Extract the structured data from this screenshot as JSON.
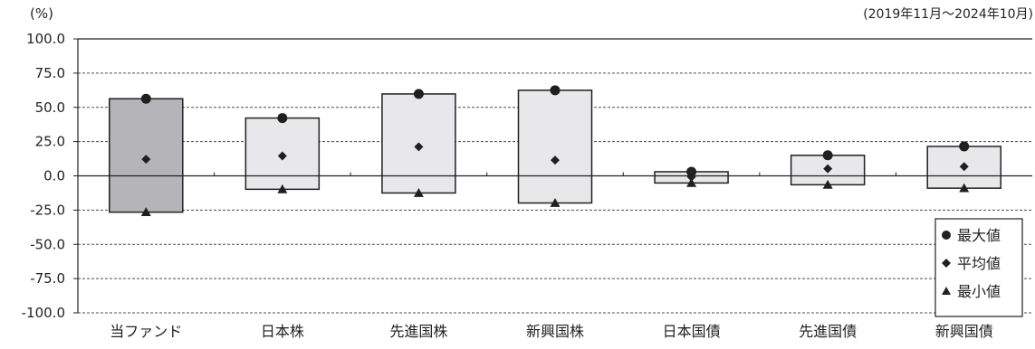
{
  "chart_data": {
    "type": "bar",
    "subtype": "floating-range-with-markers",
    "unit_label": "(%)",
    "period": "(2019年11月～2024年10月)",
    "categories": [
      "当ファンド",
      "日本株",
      "先進国株",
      "新興国株",
      "日本国債",
      "先進国債",
      "新興国債"
    ],
    "series": [
      {
        "name": "最大値",
        "marker": "circle",
        "values": [
          56.3,
          42.2,
          59.8,
          62.5,
          3.0,
          15.0,
          21.5
        ]
      },
      {
        "name": "平均値",
        "marker": "diamond",
        "values": [
          12.1,
          14.5,
          21.2,
          11.5,
          -0.8,
          5.2,
          6.8
        ]
      },
      {
        "name": "最小値",
        "marker": "triangle",
        "values": [
          -26.5,
          -9.8,
          -12.5,
          -19.8,
          -5.2,
          -6.5,
          -9.0
        ]
      }
    ],
    "y_ticks": [
      "100.0",
      "75.0",
      "50.0",
      "25.0",
      "0.0",
      "-25.0",
      "-50.0",
      "-75.0",
      "-100.0"
    ],
    "ylim": [
      -100,
      100
    ],
    "ytick_step": 25,
    "grid": "dashed horizontal",
    "legend_placement": "bottom-right",
    "colors": {
      "highlight_bar": "#b5b5b9",
      "other_bars": "#e8e8ea",
      "bar_stroke": "#231f20",
      "marker": "#231f20",
      "grid": "#4d4d4d"
    }
  }
}
